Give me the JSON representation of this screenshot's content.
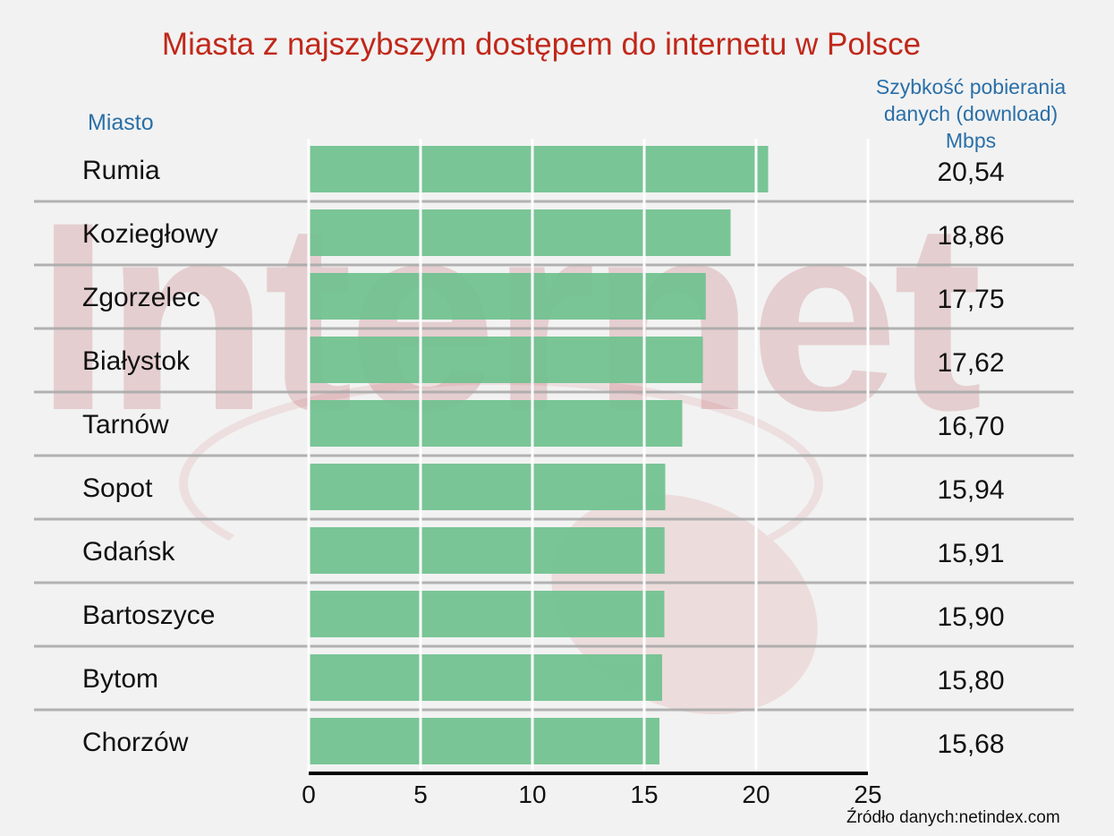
{
  "chart_data": {
    "type": "bar",
    "orientation": "horizontal",
    "title": "Miasta z najszybszym dostępem do internetu w Polsce",
    "category_header": "Miasto",
    "value_header": [
      "Szybkość pobierania",
      "danych (download)",
      "Mbps"
    ],
    "categories": [
      "Rumia",
      "Koziegłowy",
      "Zgorzelec",
      "Białystok",
      "Tarnów",
      "Sopot",
      "Gdańsk",
      "Bartoszyce",
      "Bytom",
      "Chorzów"
    ],
    "values": [
      20.54,
      18.86,
      17.75,
      17.62,
      16.7,
      15.94,
      15.91,
      15.9,
      15.8,
      15.68
    ],
    "value_labels": [
      "20,54",
      "18,86",
      "17,75",
      "17,62",
      "16,70",
      "15,94",
      "15,91",
      "15,90",
      "15,80",
      "15,68"
    ],
    "xlim": [
      0,
      25
    ],
    "xticks": [
      "0",
      "5",
      "10",
      "15",
      "20",
      "25"
    ],
    "grid": true,
    "bar_color": "#6fc18e",
    "title_color": "#c0281a",
    "header_color": "#2a6fa8",
    "source": "Źródło danych:netindex.com",
    "watermark": "Internet"
  }
}
